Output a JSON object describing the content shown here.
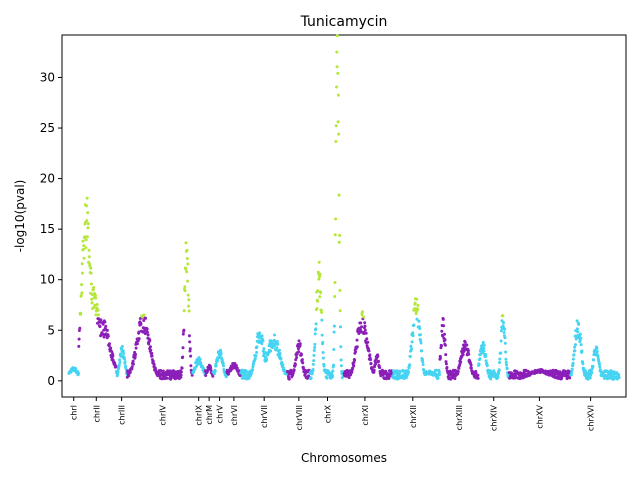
{
  "chart_data": {
    "type": "scatter",
    "title": "Tunicamycin",
    "xlabel": "Chromosomes",
    "ylabel": "-log10(pval)",
    "ylim": [
      -1.6,
      34.2
    ],
    "yticks": [
      0,
      5,
      10,
      15,
      20,
      25,
      30
    ],
    "xlim": [
      0,
      1
    ],
    "colors": {
      "cyan": "#45d4f2",
      "purple": "#8b1fb8",
      "green": "#b5e63a"
    },
    "significance_threshold": 6.3,
    "chromosomes": [
      {
        "name": "chrI",
        "start": 0.0,
        "end": 0.018,
        "center": 0.009,
        "color": "cyan",
        "peaks": [
          [
            0.009,
            1.2,
            0.008
          ]
        ]
      },
      {
        "name": "chrII",
        "start": 0.018,
        "end": 0.086,
        "center": 0.05,
        "color": "purple",
        "peaks": [
          [
            0.032,
            16.5,
            0.008
          ],
          [
            0.046,
            8.5,
            0.01
          ],
          [
            0.06,
            5.5,
            0.015
          ]
        ]
      },
      {
        "name": "chrIII",
        "start": 0.086,
        "end": 0.106,
        "center": 0.096,
        "color": "cyan",
        "peaks": [
          [
            0.097,
            3.0,
            0.005
          ]
        ]
      },
      {
        "name": "chrIV",
        "start": 0.106,
        "end": 0.225,
        "center": 0.17,
        "color": "purple",
        "peaks": [
          [
            0.135,
            6.0,
            0.012
          ],
          [
            0.214,
            12.5,
            0.004
          ]
        ]
      },
      {
        "name": "chrIX",
        "start": 0.225,
        "end": 0.248,
        "center": 0.236,
        "color": "cyan",
        "peaks": [
          [
            0.236,
            2.0,
            0.008
          ]
        ]
      },
      {
        "name": "chrM",
        "start": 0.248,
        "end": 0.262,
        "center": 0.255,
        "color": "purple",
        "peaks": [
          [
            0.255,
            1.5,
            0.004
          ]
        ]
      },
      {
        "name": "chrV",
        "start": 0.262,
        "end": 0.287,
        "center": 0.274,
        "color": "cyan",
        "peaks": [
          [
            0.274,
            2.8,
            0.006
          ]
        ]
      },
      {
        "name": "chrVI",
        "start": 0.287,
        "end": 0.312,
        "center": 0.3,
        "color": "purple",
        "peaks": [
          [
            0.3,
            1.6,
            0.008
          ]
        ]
      },
      {
        "name": "chrVII",
        "start": 0.312,
        "end": 0.397,
        "center": 0.355,
        "color": "cyan",
        "peaks": [
          [
            0.347,
            4.5,
            0.008
          ],
          [
            0.372,
            4.0,
            0.012
          ]
        ]
      },
      {
        "name": "chrVIII",
        "start": 0.397,
        "end": 0.438,
        "center": 0.418,
        "color": "purple",
        "peaks": [
          [
            0.418,
            3.5,
            0.006
          ]
        ]
      },
      {
        "name": "chrX",
        "start": 0.438,
        "end": 0.5,
        "center": 0.47,
        "color": "cyan",
        "peaks": [
          [
            0.454,
            10.5,
            0.005
          ],
          [
            0.488,
            31.0,
            0.003
          ]
        ]
      },
      {
        "name": "chrXI",
        "start": 0.5,
        "end": 0.588,
        "center": 0.538,
        "color": "purple",
        "peaks": [
          [
            0.533,
            6.0,
            0.01
          ],
          [
            0.56,
            2.5,
            0.004
          ]
        ]
      },
      {
        "name": "chrXII",
        "start": 0.588,
        "end": 0.674,
        "center": 0.625,
        "color": "cyan",
        "peaks": [
          [
            0.631,
            7.5,
            0.007
          ],
          [
            0.655,
            0.8,
            0.01
          ]
        ]
      },
      {
        "name": "chrXIII",
        "start": 0.674,
        "end": 0.744,
        "center": 0.709,
        "color": "purple",
        "peaks": [
          [
            0.68,
            5.5,
            0.004
          ],
          [
            0.72,
            3.5,
            0.008
          ]
        ]
      },
      {
        "name": "chrXIV",
        "start": 0.744,
        "end": 0.8,
        "center": 0.772,
        "color": "cyan",
        "peaks": [
          [
            0.752,
            3.5,
            0.006
          ],
          [
            0.789,
            6.0,
            0.004
          ]
        ]
      },
      {
        "name": "chrXV",
        "start": 0.8,
        "end": 0.912,
        "center": 0.855,
        "color": "purple",
        "peaks": [
          [
            0.855,
            1.0,
            0.02
          ]
        ]
      },
      {
        "name": "chrXVI",
        "start": 0.912,
        "end": 1.0,
        "center": 0.948,
        "color": "cyan",
        "peaks": [
          [
            0.925,
            5.5,
            0.006
          ],
          [
            0.958,
            3.2,
            0.005
          ]
        ]
      }
    ]
  }
}
